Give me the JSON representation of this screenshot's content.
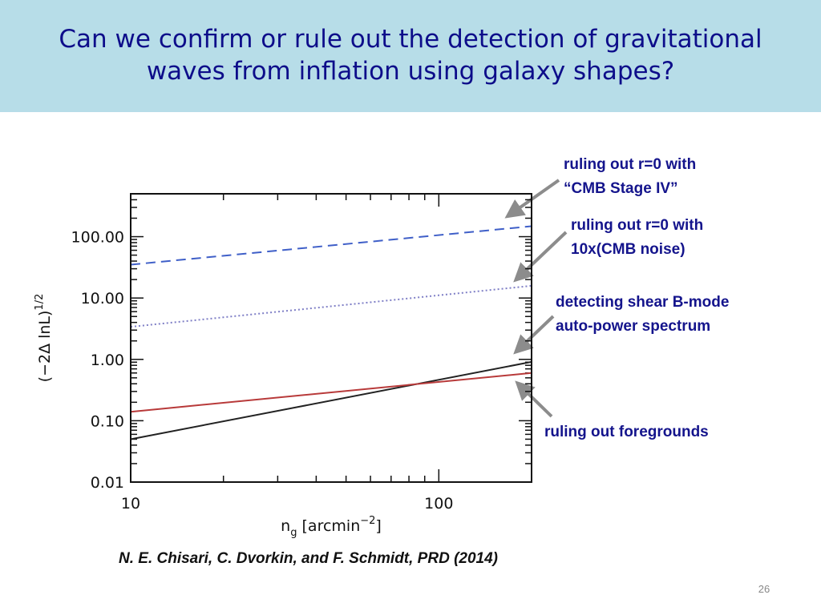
{
  "slide": {
    "title_lines": [
      "Can we confirm or rule out the detection of gravitational",
      "waves from inflation using galaxy shapes?"
    ],
    "citation": "N. E. Chisari, C. Dvorkin, and F. Schmidt, PRD (2014)",
    "page_number": "26"
  },
  "chart_data": {
    "type": "line",
    "x_label": {
      "base": "n",
      "subscript": "g",
      "text": " [arcmin",
      "superscript": "−2",
      "end": "]"
    },
    "y_label": {
      "text": "(−2Δ lnL)",
      "superscript": "1/2"
    },
    "x": [
      10,
      200
    ],
    "series": [
      {
        "color": "#3f5fc8",
        "dash": "dashed",
        "values": [
          35,
          148
        ]
      },
      {
        "color": "#7f7fc6",
        "dash": "dotted",
        "values": [
          3.4,
          15.8
        ]
      },
      {
        "color": "#222222",
        "dash": "solid",
        "values": [
          0.05,
          0.91
        ]
      },
      {
        "color": "#b83a3a",
        "dash": "solid",
        "values": [
          0.14,
          0.6
        ]
      }
    ],
    "xscale": "log",
    "yscale": "log",
    "xlim": [
      10,
      200
    ],
    "ylim": [
      0.01,
      500
    ],
    "xticks": [
      10,
      100
    ],
    "yticks": [
      {
        "value": 100,
        "label": "100.00"
      },
      {
        "value": 10,
        "label": "10.00"
      },
      {
        "value": 1,
        "label": "1.00"
      },
      {
        "value": 0.1,
        "label": "0.10"
      },
      {
        "value": 0.01,
        "label": "0.01"
      }
    ],
    "annotations": [
      {
        "lines": [
          "ruling out r=0 with",
          "“CMB Stage IV”"
        ]
      },
      {
        "lines": [
          "ruling out r=0 with",
          "10x(CMB noise)"
        ]
      },
      {
        "lines": [
          "detecting shear B-mode",
          "auto-power spectrum"
        ]
      },
      {
        "lines": [
          "ruling out foregrounds"
        ]
      }
    ]
  }
}
